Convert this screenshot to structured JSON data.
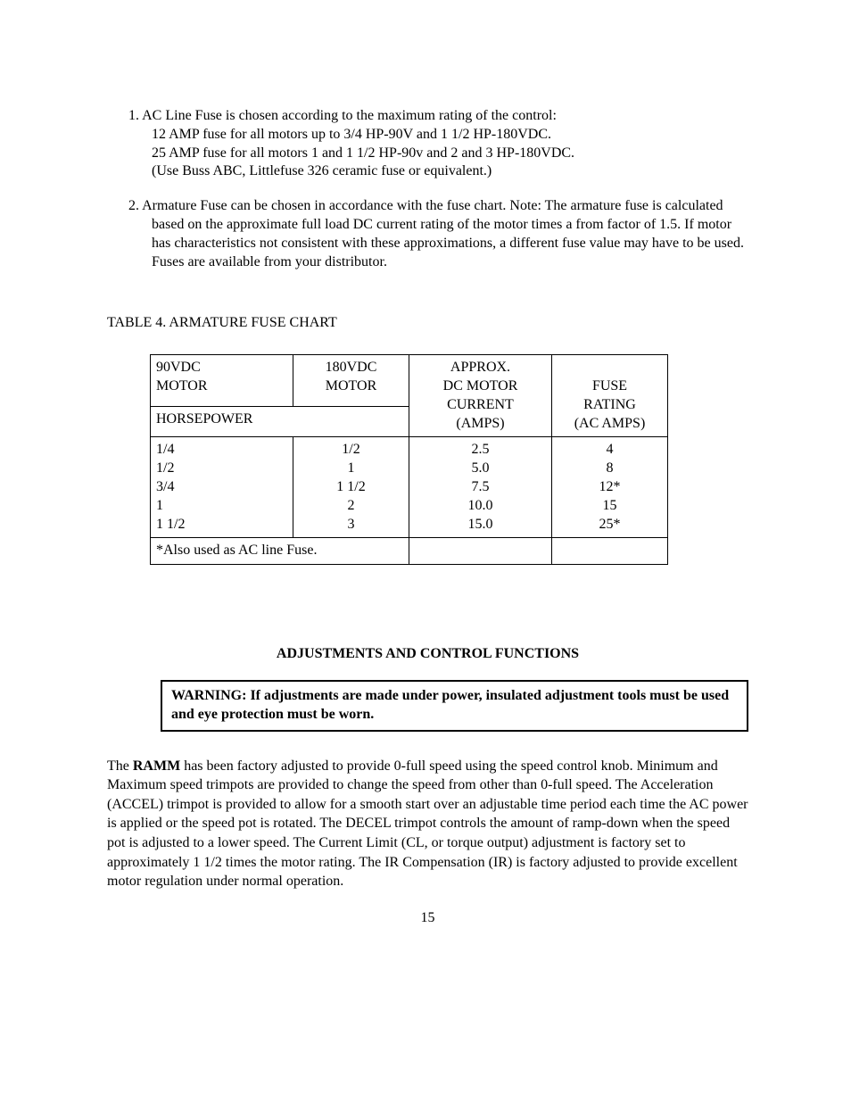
{
  "list": {
    "item1": {
      "lead": "1.   AC Line Fuse is chosen according to the maximum rating of the control:",
      "lines": [
        "12 AMP fuse for all motors up to 3/4 HP-90V and 1 1/2 HP-180VDC.",
        "25 AMP fuse for all motors 1 and 1 1/2 HP-90v and 2 and 3 HP-180VDC.",
        "(Use Buss ABC, Littlefuse 326 ceramic fuse or equivalent.)"
      ]
    },
    "item2": {
      "lead": "2.   Armature Fuse can be chosen in accordance with the fuse chart.  Note:  The armature fuse is calculated based on the approximate full load DC current rating of the motor times a from factor of 1.5.  If motor has characteristics not consistent with these approximations, a different fuse value may have to be used.  Fuses are available from your distributor."
    }
  },
  "tableTitle": "TABLE 4.  ARMATURE FUSE CHART",
  "table": {
    "headers": {
      "col1": [
        "90VDC",
        "MOTOR"
      ],
      "col2": [
        "180VDC",
        "MOTOR"
      ],
      "col3": [
        "APPROX.",
        "DC MOTOR",
        "CURRENT",
        "(AMPS)"
      ],
      "col4": [
        "FUSE",
        "RATING",
        "(AC AMPS)"
      ]
    },
    "hpLabel": "HORSEPOWER",
    "rows": {
      "col1": [
        "1/4",
        "1/2",
        "3/4",
        "1",
        "1 1/2"
      ],
      "col2": [
        "1/2",
        "1",
        "1 1/2",
        "2",
        "3"
      ],
      "col3": [
        "2.5",
        "5.0",
        "7.5",
        "10.0",
        "15.0"
      ],
      "col4": [
        "4",
        "8",
        "12*",
        "15",
        "25*"
      ]
    },
    "footnote": "*Also used as AC line Fuse."
  },
  "sectionHeading": "ADJUSTMENTS AND CONTROL FUNCTIONS",
  "warning": "WARNING:  If adjustments are made under power, insulated adjustment tools must be used and eye protection must be worn.",
  "paragraph": {
    "pre": "The ",
    "bold": "RAMM",
    "post": " has been factory adjusted to provide 0-full speed using the speed control knob.  Minimum and Maximum speed trimpots are provided to change the speed from other than 0-full speed.  The Acceleration (ACCEL) trimpot is provided to allow for a smooth start over an adjustable time period each time the AC power is applied or the speed pot is rotated.  The DECEL trimpot controls the amount of ramp-down when the speed pot is adjusted to a lower speed.  The Current Limit (CL, or torque output) adjustment is factory set to approximately 1 1/2 times the motor rating.  The IR Compensation (IR) is factory adjusted to provide excellent motor regulation under normal operation."
  },
  "pageNumber": "15"
}
